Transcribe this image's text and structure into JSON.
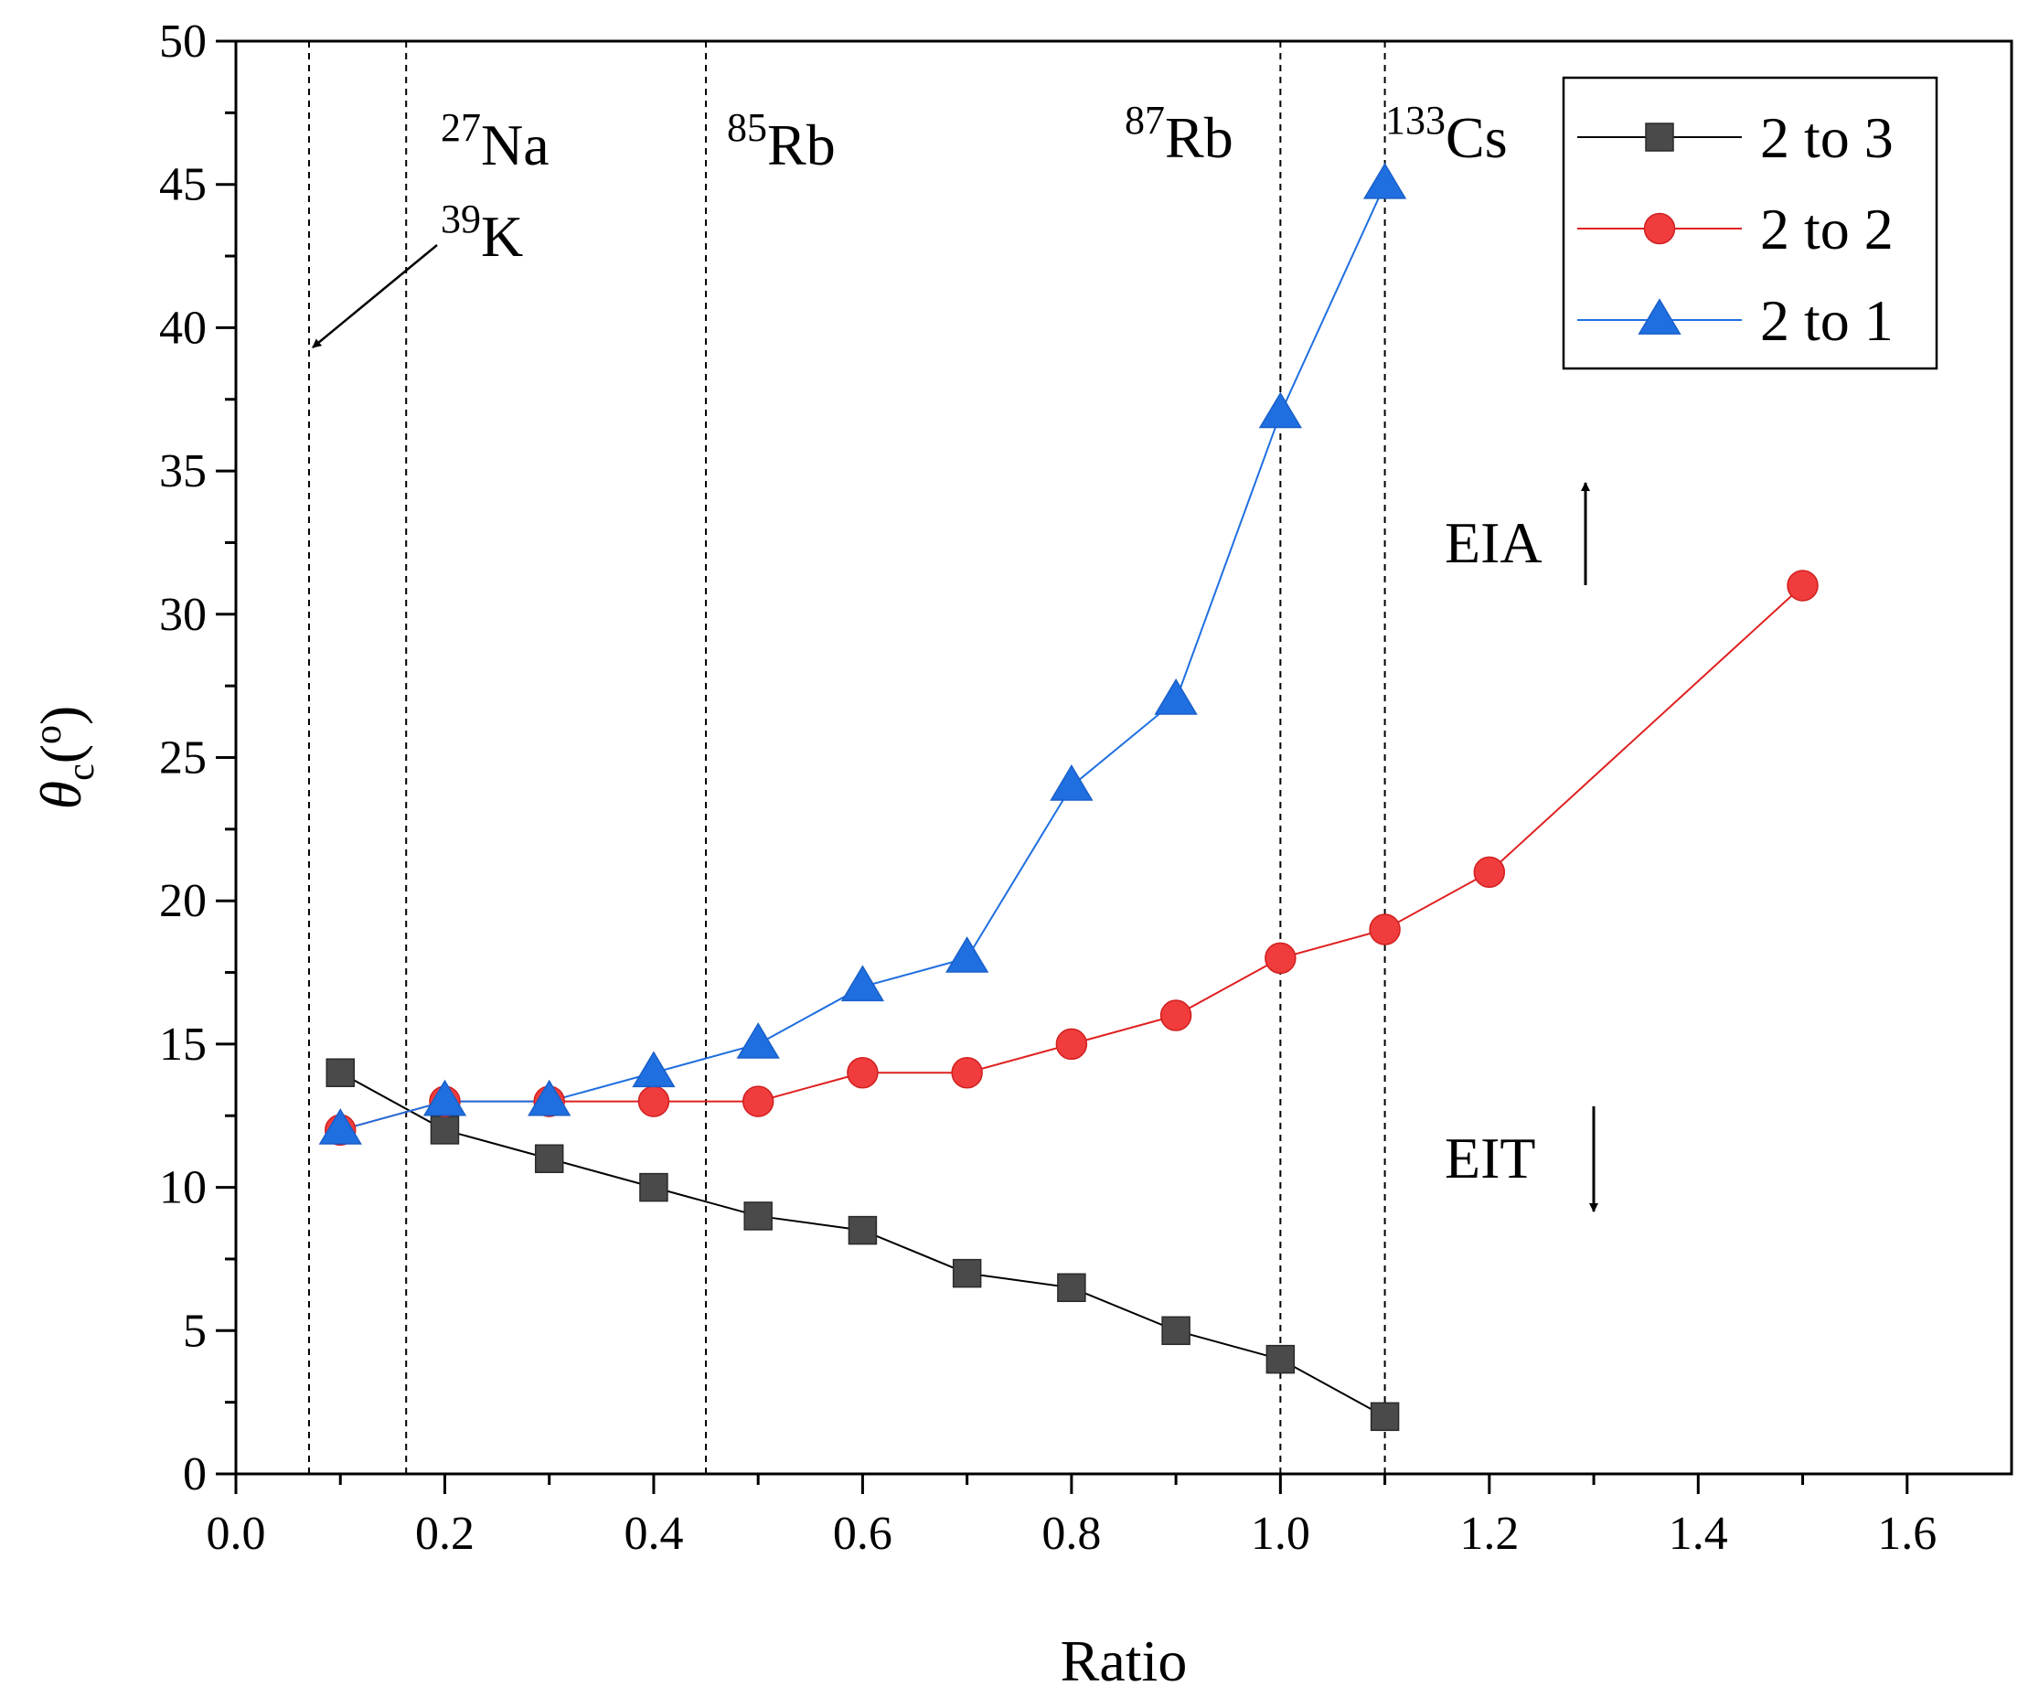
{
  "chart_data": {
    "type": "line",
    "xlabel": "Ratio",
    "ylabel": {
      "theta": "θ",
      "sub": "c",
      "paren_open": "(",
      "sup": "o",
      "paren_close": ")"
    },
    "xlim": [
      0,
      1.7
    ],
    "ylim": [
      0,
      50
    ],
    "x_ticks": [
      0.0,
      0.2,
      0.4,
      0.6,
      0.8,
      1.0,
      1.2,
      1.4,
      1.6
    ],
    "x_tick_labels": [
      "0.0",
      "0.2",
      "0.4",
      "0.6",
      "0.8",
      "1.0",
      "1.2",
      "1.4",
      "1.6"
    ],
    "y_ticks": [
      0,
      5,
      10,
      15,
      20,
      25,
      30,
      35,
      40,
      45,
      50
    ],
    "y_tick_labels": [
      "0",
      "5",
      "10",
      "15",
      "20",
      "25",
      "30",
      "35",
      "40",
      "45",
      "50"
    ],
    "grid": false,
    "legend_position": "top-right",
    "series": [
      {
        "name": "2 to 3",
        "marker": "square",
        "color": "#4a4a4a",
        "line_color": "#000000",
        "x": [
          0.1,
          0.2,
          0.3,
          0.4,
          0.5,
          0.6,
          0.7,
          0.8,
          0.9,
          1.0,
          1.1
        ],
        "y": [
          14,
          12,
          11,
          10,
          9,
          8.5,
          7,
          6.5,
          5,
          4,
          2
        ]
      },
      {
        "name": "2 to 2",
        "marker": "circle",
        "color": "#f03c3c",
        "line_color": "#e02020",
        "x": [
          0.1,
          0.2,
          0.3,
          0.4,
          0.5,
          0.6,
          0.7,
          0.8,
          0.9,
          1.0,
          1.1,
          1.2,
          1.5
        ],
        "y": [
          12,
          13,
          13,
          13,
          13,
          14,
          14,
          15,
          16,
          18,
          19,
          21,
          31
        ]
      },
      {
        "name": "2 to 1",
        "marker": "triangle",
        "color": "#1f6fe0",
        "line_color": "#1f6fe0",
        "x": [
          0.1,
          0.2,
          0.3,
          0.4,
          0.5,
          0.6,
          0.7,
          0.8,
          0.9,
          1.0,
          1.1
        ],
        "y": [
          12,
          13,
          13,
          14,
          15,
          17,
          18,
          24,
          27,
          37,
          45
        ]
      }
    ],
    "reference_lines": [
      {
        "x": 0.07,
        "mass": "39",
        "element": "K"
      },
      {
        "x": 0.163,
        "mass": "27",
        "element": "Na"
      },
      {
        "x": 0.45,
        "mass": "85",
        "element": "Rb"
      },
      {
        "x": 1.0,
        "mass": "87",
        "element": "Rb"
      },
      {
        "x": 1.1,
        "mass": "133",
        "element": "Cs"
      }
    ],
    "annotations": [
      {
        "text": "EIA",
        "direction": "up"
      },
      {
        "text": "EIT",
        "direction": "down"
      }
    ]
  }
}
